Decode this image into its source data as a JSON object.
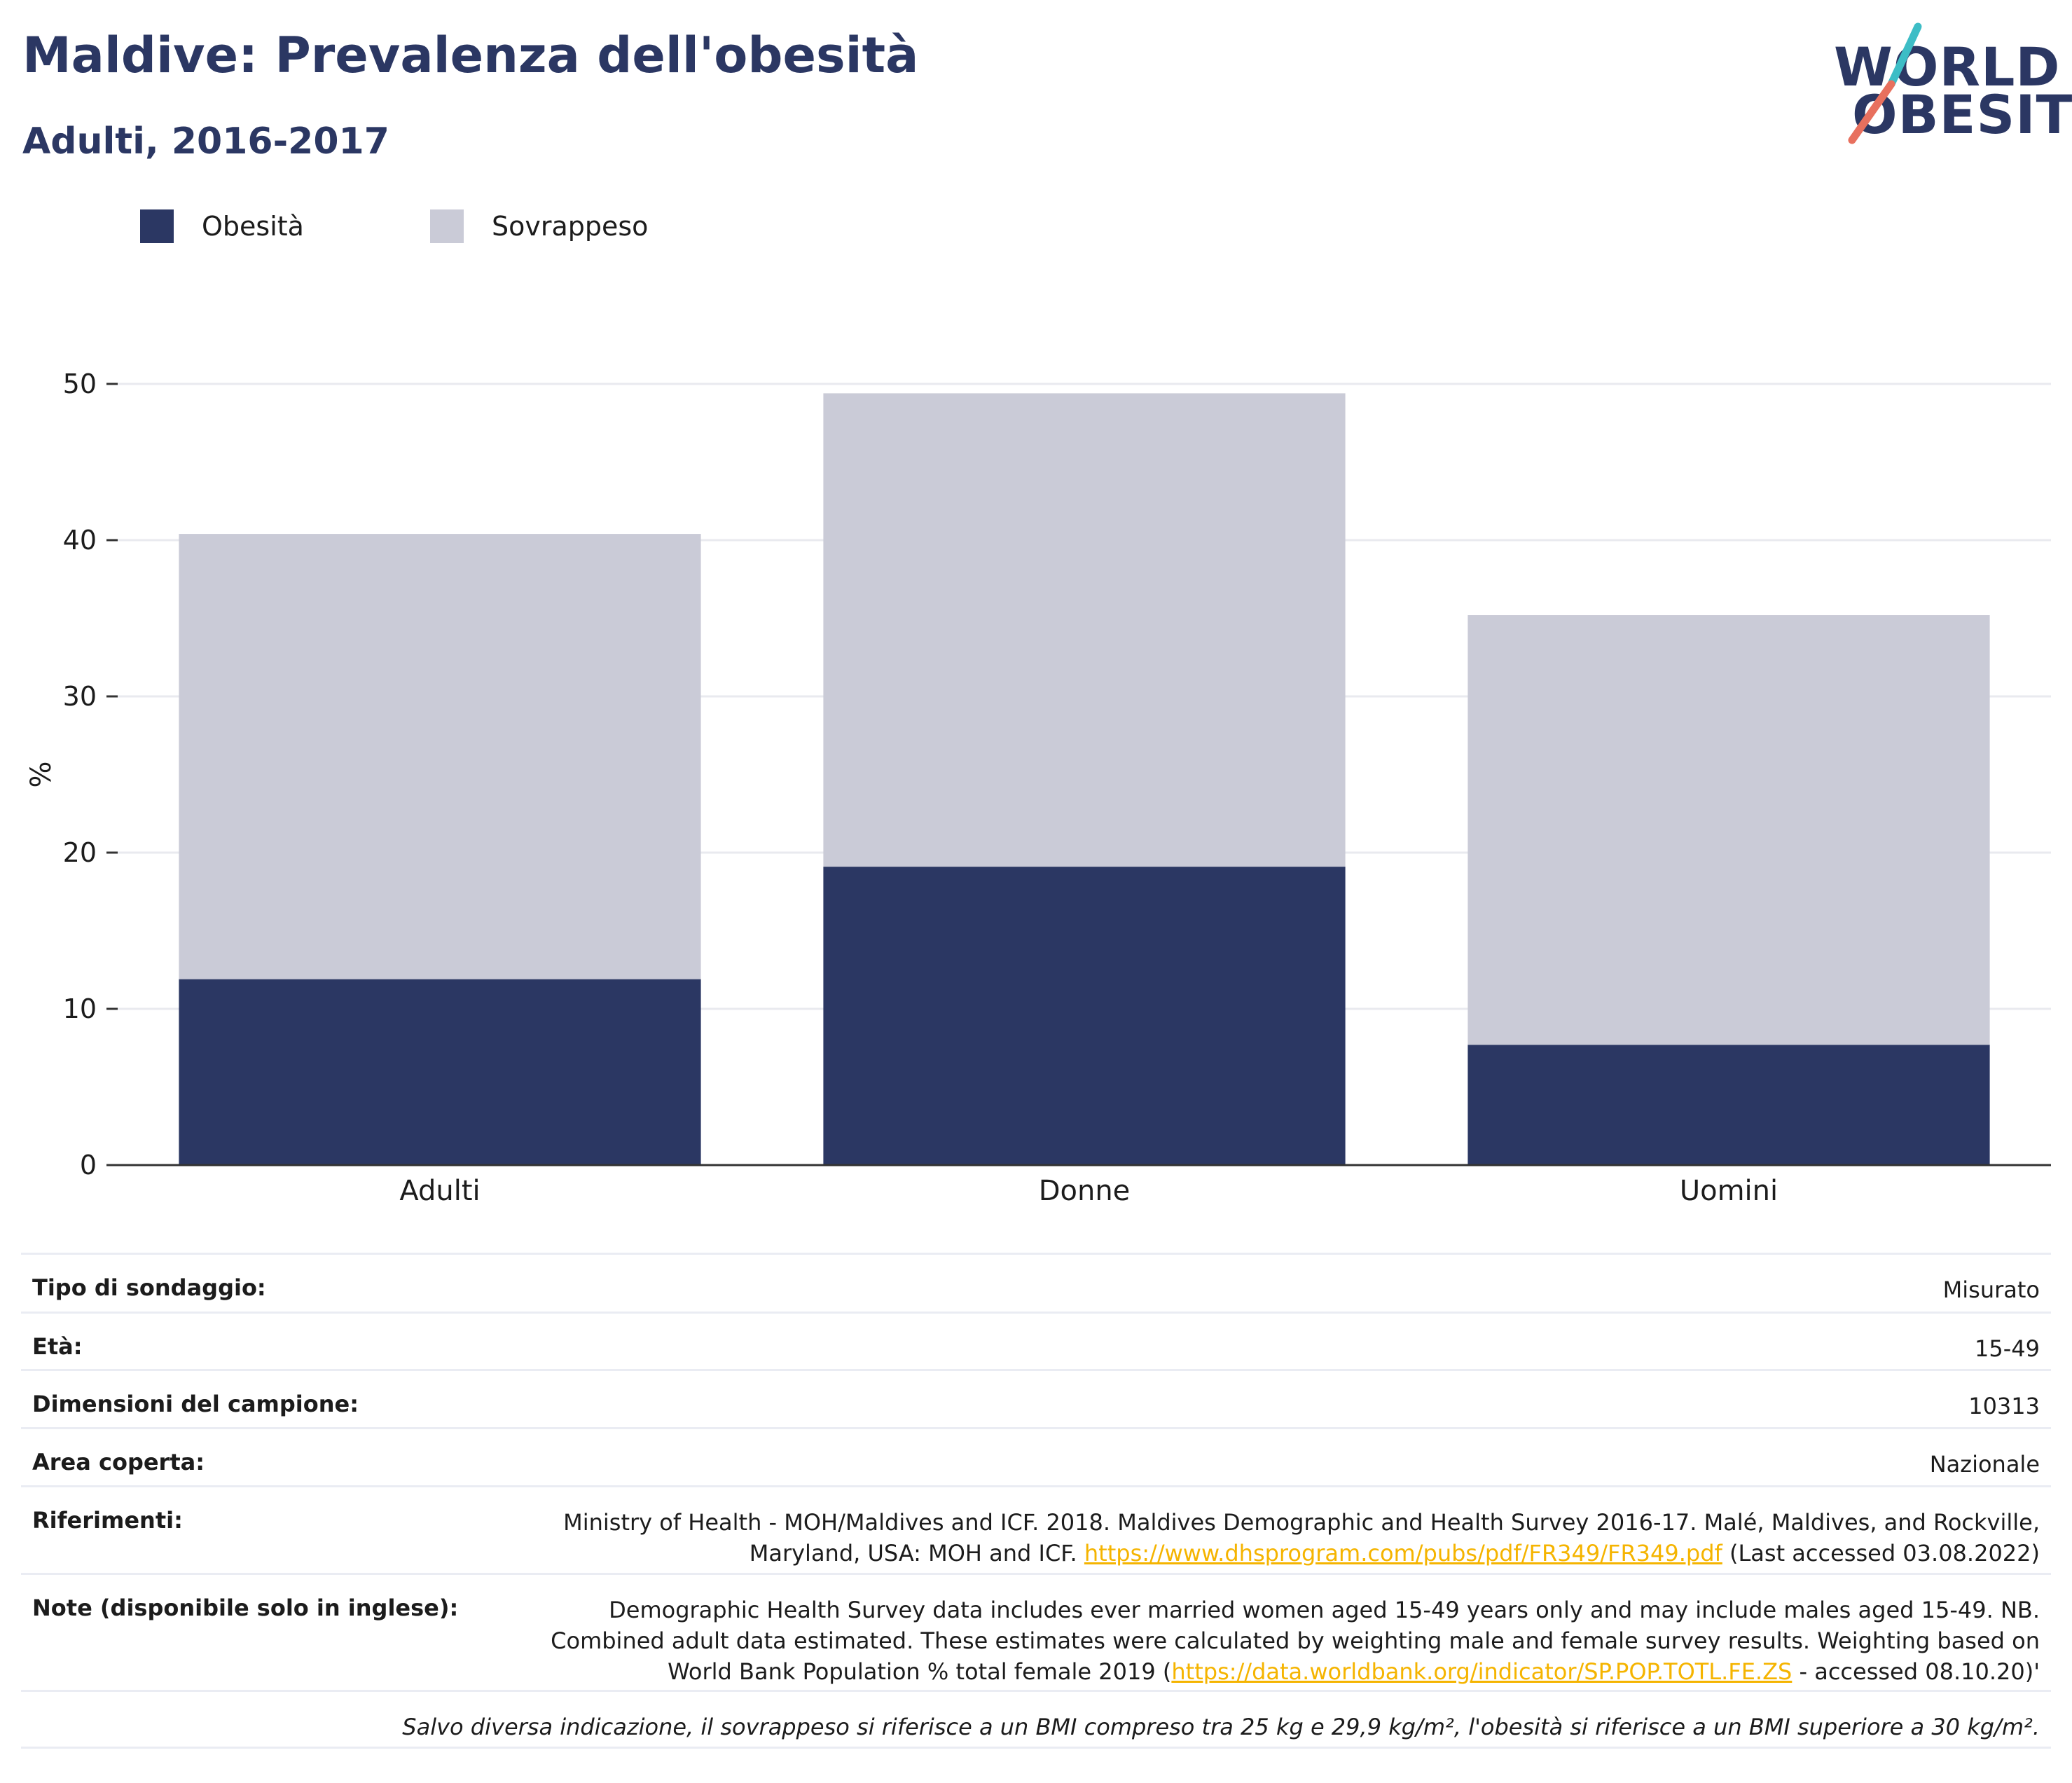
{
  "header": {
    "title": "Maldive: Prevalenza dell'obesità",
    "subtitle": "Adulti, 2016-2017",
    "logo_line1": "WORLD",
    "logo_line2": "OBESITY"
  },
  "colors": {
    "obesity": "#2b3763",
    "overweight": "#cacbd7",
    "link": "#f5b400",
    "logo_teal": "#3dbdc6",
    "logo_coral": "#e8705e"
  },
  "chart_data": {
    "type": "bar",
    "stacked": true,
    "categories": [
      "Adulti",
      "Donne",
      "Uomini"
    ],
    "series": [
      {
        "name": "Obesità",
        "values": [
          11.9,
          19.1,
          7.7
        ]
      },
      {
        "name": "Sovrappeso",
        "values": [
          28.5,
          30.3,
          27.5
        ]
      }
    ],
    "ylabel": "%",
    "ylim": [
      0,
      50
    ],
    "yticks": [
      0,
      10,
      20,
      30,
      40,
      50
    ],
    "grid": true,
    "legend_position": "top-left"
  },
  "details": {
    "survey_type": {
      "label": "Tipo di sondaggio:",
      "value": "Misurato"
    },
    "age": {
      "label": "Età:",
      "value": "15-49"
    },
    "sample_size": {
      "label": "Dimensioni del campione:",
      "value": "10313"
    },
    "area": {
      "label": "Area coperta:",
      "value": "Nazionale"
    },
    "references": {
      "label": "Riferimenti:",
      "text_line1": "Ministry of Health - MOH/Maldives and ICF. 2018. Maldives Demographic and Health Survey 2016-17. Malé, Maldives, and Rockville,",
      "text_line2_pre": "Maryland, USA: MOH and ICF.",
      "link": "https://www.dhsprogram.com/pubs/pdf/FR349/FR349.pdf",
      "text_line2_post": "(Last accessed 03.08.2022)"
    },
    "notes": {
      "label": "Note (disponibile solo in inglese):",
      "line1": "Demographic Health Survey data includes ever married women aged 15-49 years only and may include males aged 15-49. NB.",
      "line2": "Combined adult data estimated. These estimates were calculated by weighting male and female survey results. Weighting based on",
      "line3_pre": "World Bank Population % total female 2019 (",
      "link": "https://data.worldbank.org/indicator/SP.POP.TOTL.FE.ZS",
      "line3_post": " - accessed 08.10.20)'"
    },
    "footnote": "Salvo diversa indicazione, il sovrappeso si riferisce a un BMI compreso tra 25 kg e 29,9 kg/m², l'obesità si riferisce a un BMI superiore a 30 kg/m²."
  }
}
